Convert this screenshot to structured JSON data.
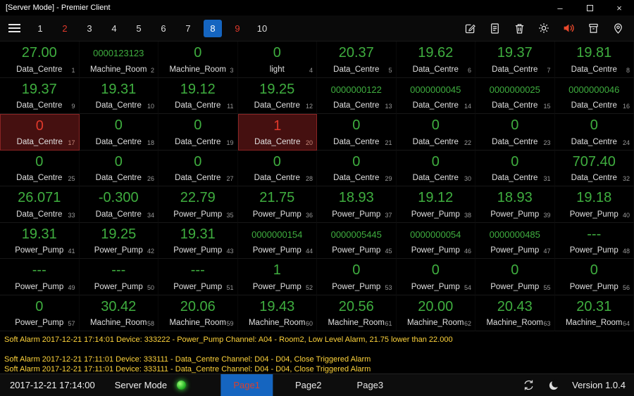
{
  "window": {
    "title": "[Server Mode] - Premier Client",
    "minimize": "–",
    "close": "×"
  },
  "colors": {
    "value_green": "#3fae3f",
    "alarm_red": "#e0392b",
    "alarm_cell_bg": "#451010",
    "alarm_cell_border": "#8a2424",
    "active_tab_bg": "#1565c0",
    "alarm_message_yellow": "#ffd43b",
    "speaker_red": "#e8482c"
  },
  "toolbar": {
    "tabs": [
      {
        "label": "1",
        "state": "normal"
      },
      {
        "label": "2",
        "state": "alarm"
      },
      {
        "label": "3",
        "state": "normal"
      },
      {
        "label": "4",
        "state": "normal"
      },
      {
        "label": "5",
        "state": "normal"
      },
      {
        "label": "6",
        "state": "normal"
      },
      {
        "label": "7",
        "state": "normal"
      },
      {
        "label": "8",
        "state": "active"
      },
      {
        "label": "9",
        "state": "alarm"
      },
      {
        "label": "10",
        "state": "normal"
      }
    ],
    "icons": [
      "edit-icon",
      "report-icon",
      "trash-icon",
      "settings-icon",
      "speaker-icon",
      "archive-icon",
      "location-icon"
    ]
  },
  "grid": {
    "cells": [
      {
        "index": 1,
        "value": "27.00",
        "label": "Data_Centre"
      },
      {
        "index": 2,
        "value": "0000123123",
        "label": "Machine_Room"
      },
      {
        "index": 3,
        "value": "0",
        "label": "Machine_Room"
      },
      {
        "index": 4,
        "value": "0",
        "label": "light"
      },
      {
        "index": 5,
        "value": "20.37",
        "label": "Data_Centre"
      },
      {
        "index": 6,
        "value": "19.62",
        "label": "Data_Centre"
      },
      {
        "index": 7,
        "value": "19.37",
        "label": "Data_Centre"
      },
      {
        "index": 8,
        "value": "19.81",
        "label": "Data_Centre"
      },
      {
        "index": 9,
        "value": "19.37",
        "label": "Data_Centre"
      },
      {
        "index": 10,
        "value": "19.31",
        "label": "Data_Centre"
      },
      {
        "index": 11,
        "value": "19.12",
        "label": "Data_Centre"
      },
      {
        "index": 12,
        "value": "19.25",
        "label": "Data_Centre"
      },
      {
        "index": 13,
        "value": "0000000122",
        "label": "Data_Centre"
      },
      {
        "index": 14,
        "value": "0000000045",
        "label": "Data_Centre"
      },
      {
        "index": 15,
        "value": "0000000025",
        "label": "Data_Centre"
      },
      {
        "index": 16,
        "value": "0000000046",
        "label": "Data_Centre"
      },
      {
        "index": 17,
        "value": "0",
        "label": "Data_Centre",
        "alarm": true
      },
      {
        "index": 18,
        "value": "0",
        "label": "Data_Centre"
      },
      {
        "index": 19,
        "value": "0",
        "label": "Data_Centre"
      },
      {
        "index": 20,
        "value": "1",
        "label": "Data_Centre",
        "alarm": true
      },
      {
        "index": 21,
        "value": "0",
        "label": "Data_Centre"
      },
      {
        "index": 22,
        "value": "0",
        "label": "Data_Centre"
      },
      {
        "index": 23,
        "value": "0",
        "label": "Data_Centre"
      },
      {
        "index": 24,
        "value": "0",
        "label": "Data_Centre"
      },
      {
        "index": 25,
        "value": "0",
        "label": "Data_Centre"
      },
      {
        "index": 26,
        "value": "0",
        "label": "Data_Centre"
      },
      {
        "index": 27,
        "value": "0",
        "label": "Data_Centre"
      },
      {
        "index": 28,
        "value": "0",
        "label": "Data_Centre"
      },
      {
        "index": 29,
        "value": "0",
        "label": "Data_Centre"
      },
      {
        "index": 30,
        "value": "0",
        "label": "Data_Centre"
      },
      {
        "index": 31,
        "value": "0",
        "label": "Data_Centre"
      },
      {
        "index": 32,
        "value": "707.40",
        "label": "Data_Centre"
      },
      {
        "index": 33,
        "value": "26.071",
        "label": "Data_Centre"
      },
      {
        "index": 34,
        "value": "-0.300",
        "label": "Data_Centre"
      },
      {
        "index": 35,
        "value": "22.79",
        "label": "Power_Pump"
      },
      {
        "index": 36,
        "value": "21.75",
        "label": "Power_Pump"
      },
      {
        "index": 37,
        "value": "18.93",
        "label": "Power_Pump"
      },
      {
        "index": 38,
        "value": "19.12",
        "label": "Power_Pump"
      },
      {
        "index": 39,
        "value": "18.93",
        "label": "Power_Pump"
      },
      {
        "index": 40,
        "value": "19.18",
        "label": "Power_Pump"
      },
      {
        "index": 41,
        "value": "19.31",
        "label": "Power_Pump"
      },
      {
        "index": 42,
        "value": "19.25",
        "label": "Power_Pump"
      },
      {
        "index": 43,
        "value": "19.31",
        "label": "Power_Pump"
      },
      {
        "index": 44,
        "value": "0000000154",
        "label": "Power_Pump"
      },
      {
        "index": 45,
        "value": "0000005445",
        "label": "Power_Pump"
      },
      {
        "index": 46,
        "value": "0000000054",
        "label": "Power_Pump"
      },
      {
        "index": 47,
        "value": "0000000485",
        "label": "Power_Pump"
      },
      {
        "index": 48,
        "value": "---",
        "label": "Power_Pump"
      },
      {
        "index": 49,
        "value": "---",
        "label": "Power_Pump"
      },
      {
        "index": 50,
        "value": "---",
        "label": "Power_Pump"
      },
      {
        "index": 51,
        "value": "---",
        "label": "Power_Pump"
      },
      {
        "index": 52,
        "value": "1",
        "label": "Power_Pump"
      },
      {
        "index": 53,
        "value": "0",
        "label": "Power_Pump"
      },
      {
        "index": 54,
        "value": "0",
        "label": "Power_Pump"
      },
      {
        "index": 55,
        "value": "0",
        "label": "Power_Pump"
      },
      {
        "index": 56,
        "value": "0",
        "label": "Power_Pump"
      },
      {
        "index": 57,
        "value": "0",
        "label": "Power_Pump"
      },
      {
        "index": 58,
        "value": "30.42",
        "label": "Machine_Room"
      },
      {
        "index": 59,
        "value": "20.06",
        "label": "Machine_Room"
      },
      {
        "index": 60,
        "value": "19.43",
        "label": "Machine_Room"
      },
      {
        "index": 61,
        "value": "20.56",
        "label": "Machine_Room"
      },
      {
        "index": 62,
        "value": "20.00",
        "label": "Machine_Room"
      },
      {
        "index": 63,
        "value": "20.43",
        "label": "Machine_Room"
      },
      {
        "index": 64,
        "value": "20.31",
        "label": "Machine_Room"
      }
    ]
  },
  "alarms": [
    {
      "text": "Soft Alarm 2017-12-21 17:14:01 Device: 333222 - Power_Pump Channel: A04 - Room2, Low Level Alarm, 21.75 lower than 22.000"
    },
    {
      "text": "Soft Alarm 2017-12-21 17:11:01 Device: 333111 - Data_Centre Channel: D04 - D04, Close Triggered Alarm"
    },
    {
      "text": "Soft Alarm 2017-12-21 17:11:01 Device: 333111 - Data_Centre Channel: D04 - D04, Close Triggered Alarm"
    }
  ],
  "statusbar": {
    "datetime": "2017-12-21 17:14:00",
    "mode_label": "Server Mode",
    "pages": [
      {
        "label": "Page1",
        "active": true
      },
      {
        "label": "Page2",
        "active": false
      },
      {
        "label": "Page3",
        "active": false
      }
    ],
    "version": "Version 1.0.4"
  }
}
